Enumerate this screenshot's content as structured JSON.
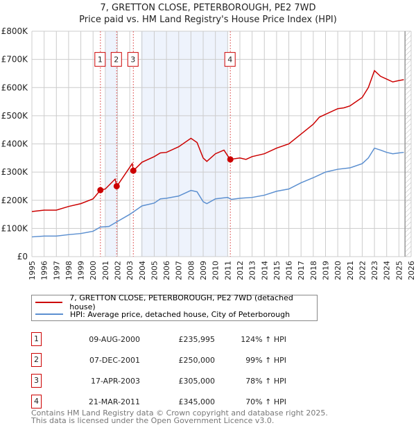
{
  "chart_data": {
    "type": "line",
    "title": "7, GRETTON CLOSE, PETERBOROUGH, PE2 7WD",
    "subtitle": "Price paid vs. HM Land Registry's House Price Index (HPI)",
    "xlim": [
      1995,
      2026
    ],
    "ylim": [
      0,
      800000
    ],
    "y_ticks": [
      {
        "v": 0,
        "label": "£0"
      },
      {
        "v": 100000,
        "label": "£100K"
      },
      {
        "v": 200000,
        "label": "£200K"
      },
      {
        "v": 300000,
        "label": "£300K"
      },
      {
        "v": 400000,
        "label": "£400K"
      },
      {
        "v": 500000,
        "label": "£500K"
      },
      {
        "v": 600000,
        "label": "£600K"
      },
      {
        "v": 700000,
        "label": "£700K"
      },
      {
        "v": 800000,
        "label": "£800K"
      }
    ],
    "x_ticks": [
      "1995",
      "1996",
      "1997",
      "1998",
      "1999",
      "2000",
      "2001",
      "2002",
      "2003",
      "2004",
      "2005",
      "2006",
      "2007",
      "2008",
      "2009",
      "2010",
      "2011",
      "2012",
      "2013",
      "2014",
      "2015",
      "2016",
      "2017",
      "2018",
      "2019",
      "2020",
      "2021",
      "2022",
      "2023",
      "2024",
      "2025",
      "2026"
    ],
    "grid": true,
    "shaded_ranges": [
      [
        2001.0,
        2001.95
      ],
      [
        2003.9,
        2011.0
      ]
    ],
    "hatched_from": 2025.5,
    "series": [
      {
        "name": "7, GRETTON CLOSE, PETERBOROUGH, PE2 7WD (detached house)",
        "color": "#cc0000",
        "x": [
          1995,
          1996,
          1997,
          1998,
          1999,
          2000,
          2000.6,
          2001,
          2001.8,
          2001.95,
          2002.5,
          2003.2,
          2003.3,
          2004,
          2005,
          2005.5,
          2006,
          2007,
          2008,
          2008.5,
          2009,
          2009.3,
          2010,
          2010.7,
          2011.2,
          2012,
          2012.5,
          2013,
          2014,
          2015,
          2016,
          2017,
          2018,
          2018.5,
          2019,
          2020,
          2020.5,
          2021,
          2022,
          2022.5,
          2023,
          2023.5,
          2024,
          2024.5,
          2025,
          2025.4
        ],
        "y": [
          160000,
          165000,
          165000,
          178000,
          188000,
          205000,
          236000,
          240000,
          275000,
          250000,
          285000,
          330000,
          305000,
          335000,
          355000,
          368000,
          370000,
          390000,
          420000,
          405000,
          350000,
          338000,
          365000,
          378000,
          345000,
          350000,
          345000,
          355000,
          365000,
          385000,
          400000,
          435000,
          470000,
          495000,
          505000,
          525000,
          528000,
          535000,
          565000,
          600000,
          660000,
          640000,
          630000,
          620000,
          625000,
          628000
        ]
      },
      {
        "name": "HPI: Average price, detached house, City of Peterborough",
        "color": "#5b8fd0",
        "x": [
          1995,
          1996,
          1997,
          1998,
          1999,
          2000,
          2000.6,
          2001.3,
          2002,
          2003,
          2004,
          2005,
          2005.5,
          2006,
          2007,
          2008,
          2008.5,
          2009,
          2009.3,
          2010,
          2011,
          2011.3,
          2012,
          2013,
          2014,
          2015,
          2016,
          2017,
          2018,
          2019,
          2020,
          2021,
          2022,
          2022.5,
          2023,
          2023.5,
          2024,
          2024.5,
          2025,
          2025.4
        ],
        "y": [
          70000,
          73000,
          73000,
          78000,
          82000,
          90000,
          105000,
          107000,
          125000,
          150000,
          180000,
          190000,
          205000,
          207000,
          215000,
          235000,
          230000,
          195000,
          188000,
          205000,
          210000,
          203000,
          207000,
          210000,
          218000,
          232000,
          240000,
          262000,
          280000,
          300000,
          310000,
          315000,
          330000,
          350000,
          385000,
          378000,
          370000,
          365000,
          368000,
          370000
        ]
      }
    ],
    "sales": [
      {
        "n": "1",
        "x": 2000.6,
        "y": 235995,
        "date": "09-AUG-2000",
        "price": "£235,995",
        "hpi": "124% ↑ HPI"
      },
      {
        "n": "2",
        "x": 2001.93,
        "y": 250000,
        "date": "07-DEC-2001",
        "price": "£250,000",
        "hpi": "99% ↑ HPI"
      },
      {
        "n": "3",
        "x": 2003.29,
        "y": 305000,
        "date": "17-APR-2003",
        "price": "£305,000",
        "hpi": "78% ↑ HPI"
      },
      {
        "n": "4",
        "x": 2011.22,
        "y": 345000,
        "date": "21-MAR-2011",
        "price": "£345,000",
        "hpi": "70% ↑ HPI"
      }
    ]
  },
  "footer": {
    "line1": "Contains HM Land Registry data © Crown copyright and database right 2025.",
    "line2": "This data is licensed under the Open Government Licence v3.0."
  }
}
